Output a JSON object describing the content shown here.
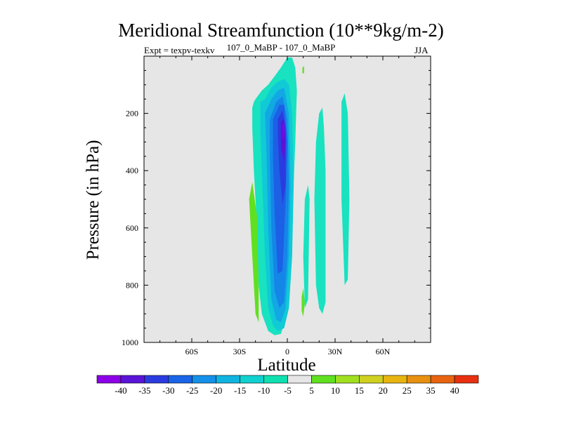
{
  "chart_data": {
    "type": "contour",
    "title": "Meridional Streamfunction (10**9kg/m-2)",
    "subtitle": "107_0_MaBP - 107_0_MaBP",
    "left_annotation": "Expt = texpv-texkv",
    "right_annotation": "JJA",
    "xlabel": "Latitude",
    "ylabel": "Pressure (in hPa)",
    "xlim": [
      -90,
      90
    ],
    "ylim": [
      1000,
      0
    ],
    "x_ticks": [
      {
        "value": -60,
        "label": "60S"
      },
      {
        "value": -30,
        "label": "30S"
      },
      {
        "value": 0,
        "label": "0"
      },
      {
        "value": 30,
        "label": "30N"
      },
      {
        "value": 60,
        "label": "60N"
      }
    ],
    "y_ticks": [
      {
        "value": 200,
        "label": "200"
      },
      {
        "value": 400,
        "label": "400"
      },
      {
        "value": 600,
        "label": "600"
      },
      {
        "value": 800,
        "label": "800"
      },
      {
        "value": 1000,
        "label": "1000"
      }
    ],
    "colorbar": {
      "levels": [
        "-40",
        "-35",
        "-30",
        "-25",
        "-20",
        "-15",
        "-10",
        "-5",
        "5",
        "10",
        "15",
        "20",
        "25",
        "35",
        "40"
      ],
      "colors": [
        "#8c00e8",
        "#5a14d8",
        "#2a3ce0",
        "#1a64e8",
        "#1490e8",
        "#10b4e0",
        "#10d0d0",
        "#10e0b0",
        "#e6e6e6",
        "#60e020",
        "#a0e020",
        "#d0d020",
        "#e8b410",
        "#e89010",
        "#e86410",
        "#e83010"
      ]
    },
    "contours": [
      {
        "level": "-5",
        "color": "#18e2c0",
        "lat": [
          -20,
          -16,
          -12,
          -8,
          -4,
          0,
          3,
          5,
          6,
          5,
          3,
          0,
          -4,
          -8,
          -12,
          -16,
          -18,
          -19,
          -21,
          -22,
          -22,
          -21
        ],
        "p": [
          150,
          120,
          100,
          70,
          40,
          5,
          5,
          40,
          120,
          300,
          600,
          900,
          970,
          975,
          960,
          900,
          800,
          600,
          400,
          250,
          180,
          160
        ]
      },
      {
        "level": "-10",
        "color": "#10cad6",
        "lat": [
          -17,
          -14,
          -10,
          -6,
          -2,
          1,
          3,
          4,
          3,
          1,
          -2,
          -6,
          -9,
          -12,
          -14,
          -16,
          -17
        ],
        "p": [
          160,
          150,
          110,
          90,
          80,
          100,
          200,
          450,
          700,
          880,
          950,
          960,
          940,
          880,
          700,
          400,
          250
        ]
      },
      {
        "level": "-15",
        "color": "#12a8e4",
        "lat": [
          -14,
          -10,
          -6,
          -2,
          1,
          2,
          1,
          -1,
          -4,
          -7,
          -10,
          -12,
          -13
        ],
        "p": [
          200,
          150,
          120,
          110,
          200,
          450,
          700,
          880,
          930,
          920,
          850,
          600,
          350
        ]
      },
      {
        "level": "-20",
        "color": "#1486e8",
        "lat": [
          -11,
          -7,
          -3,
          0,
          1,
          0,
          -2,
          -5,
          -8,
          -10,
          -11
        ],
        "p": [
          220,
          160,
          140,
          220,
          450,
          700,
          860,
          880,
          820,
          600,
          350
        ]
      },
      {
        "level": "-25",
        "color": "#1c60e6",
        "lat": [
          -9,
          -5,
          -2,
          0,
          -1,
          -3,
          -6,
          -8,
          -9
        ],
        "p": [
          220,
          170,
          170,
          300,
          500,
          750,
          760,
          550,
          350
        ]
      },
      {
        "level": "-30",
        "color": "#2a3ce0",
        "lat": [
          -6,
          -3,
          -1,
          -1,
          -3,
          -5,
          -6
        ],
        "p": [
          220,
          190,
          250,
          450,
          520,
          400,
          280
        ]
      },
      {
        "level": "-35",
        "color": "#5a14d8",
        "lat": [
          -4,
          -2,
          -1,
          -2,
          -4
        ],
        "p": [
          230,
          220,
          300,
          370,
          320
        ]
      },
      {
        "level": "-40",
        "color": "#8c00e8",
        "lat": [
          -3,
          -2,
          -2,
          -3
        ],
        "p": [
          240,
          235,
          280,
          290
        ]
      },
      {
        "level": "-5",
        "color": "#18e2c0",
        "lat": [
          18,
          20,
          22,
          23,
          24,
          24,
          22,
          20,
          18,
          17
        ],
        "p": [
          300,
          200,
          180,
          250,
          400,
          860,
          900,
          880,
          800,
          500
        ]
      },
      {
        "level": "-5",
        "color": "#18e2c0",
        "lat": [
          34,
          36,
          38,
          39,
          38,
          36,
          34
        ],
        "p": [
          160,
          130,
          200,
          500,
          780,
          800,
          500
        ]
      },
      {
        "level": "-5",
        "color": "#18e2c0",
        "lat": [
          11,
          13,
          14,
          13,
          11,
          10
        ],
        "p": [
          500,
          450,
          500,
          850,
          880,
          700
        ]
      },
      {
        "level": "5",
        "color": "#60e020",
        "lat": [
          -24,
          -22,
          -19,
          -18,
          -18,
          -20
        ],
        "p": [
          500,
          440,
          560,
          800,
          930,
          900
        ]
      },
      {
        "level": "5",
        "color": "#60e020",
        "lat": [
          9,
          10,
          11,
          10,
          9
        ],
        "p": [
          840,
          810,
          860,
          910,
          890
        ]
      },
      {
        "level": "5",
        "color": "#60e020",
        "lat": [
          9.5,
          10.5,
          10.5,
          9.5
        ],
        "p": [
          40,
          35,
          60,
          60
        ]
      }
    ]
  }
}
